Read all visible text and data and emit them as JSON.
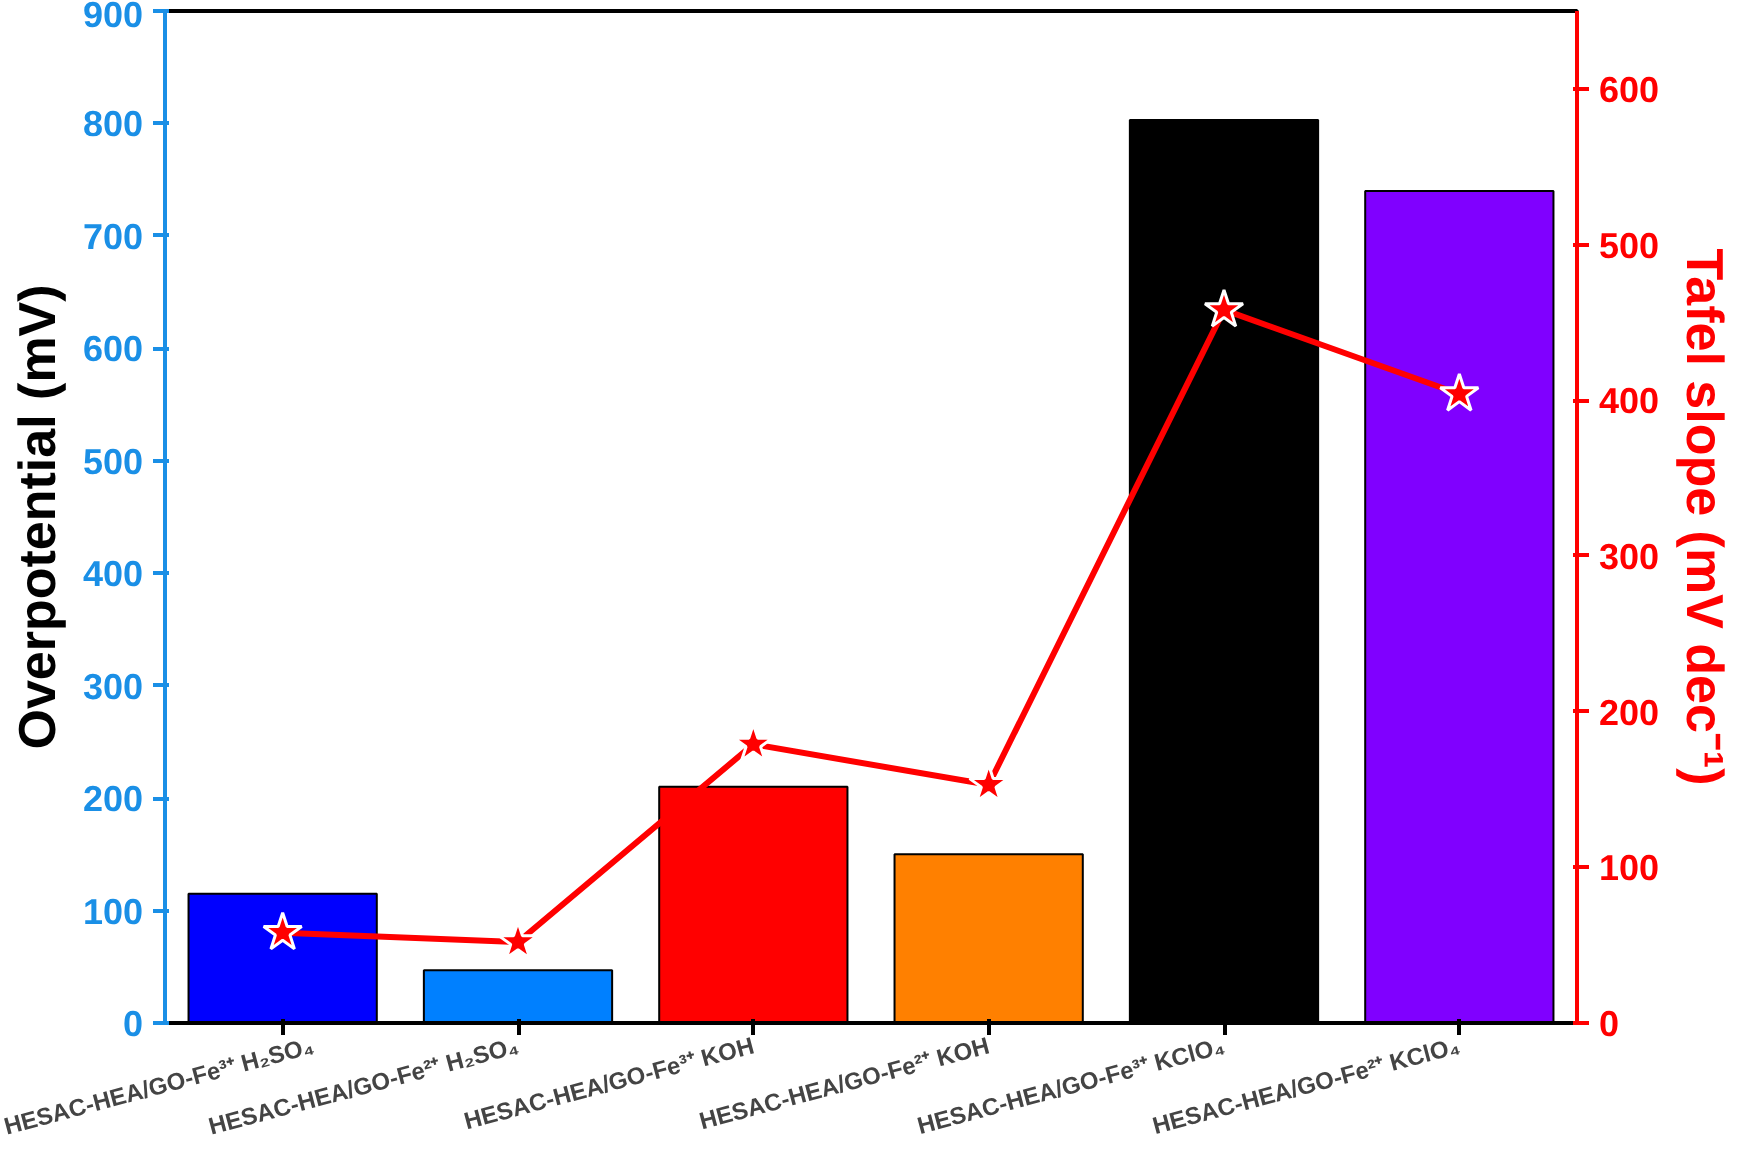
{
  "chart_data": {
    "type": "bar",
    "categories": [
      "HESAC-HEA/GO-Fe³⁺ H₂SO₄",
      "HESAC-HEA/GO-Fe²⁺ H₂SO₄",
      "HESAC-HEA/GO-Fe³⁺ KOH",
      "HESAC-HEA/GO-Fe²⁺ KOH",
      "HESAC-HEA/GO-Fe³⁺ KClO₄",
      "HESAC-HEA/GO-Fe²⁺ KClO₄"
    ],
    "series": [
      {
        "colors": [
          "#0000ff",
          "#0080ff",
          "#ff0000",
          "#ff8000",
          "#000000",
          "#8000ff"
        ],
        "values": [
          115,
          47,
          210,
          150,
          803,
          740
        ]
      },
      {
        "type": "line",
        "axis": "y2",
        "color": "#ff0000",
        "values": [
          58,
          52,
          179,
          153,
          458,
          404
        ]
      }
    ],
    "ylabel": "Overpotential (mV)",
    "y2label": "Tafel slope (mV dec⁻¹)",
    "ylim": [
      0,
      900
    ],
    "yticks": [
      0,
      100,
      200,
      300,
      400,
      500,
      600,
      700,
      800,
      900
    ],
    "y2lim": [
      0,
      650
    ],
    "y2ticks": [
      0,
      100,
      200,
      300,
      400,
      500,
      600
    ],
    "marker": "star",
    "line_style": "solid",
    "grid": false
  }
}
